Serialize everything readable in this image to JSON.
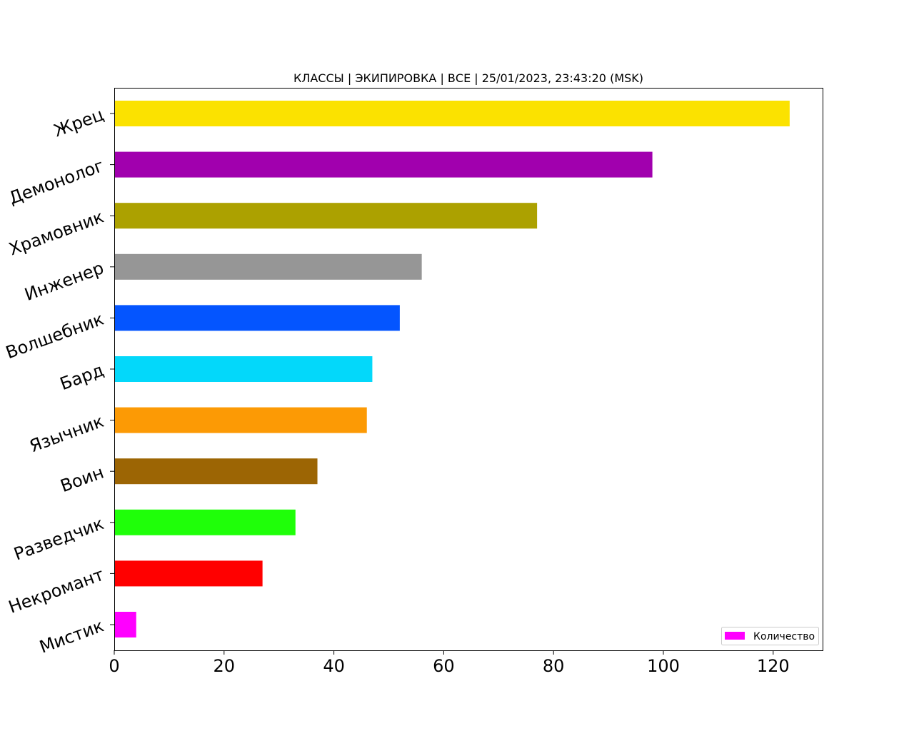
{
  "chart_data": {
    "type": "bar",
    "orientation": "horizontal",
    "title": "КЛАССЫ | ЭКИПИРОВКА | ВСЕ | 25/01/2023, 23:43:20 (MSK)",
    "xlabel": "",
    "ylabel": "",
    "xlim": [
      0,
      129
    ],
    "x_ticks": [
      "0",
      "20",
      "40",
      "60",
      "80",
      "100",
      "120"
    ],
    "grid": false,
    "legend_position": "bottom-right",
    "categories": [
      "Жрец",
      "Демонолог",
      "Храмовник",
      "Инженер",
      "Волшебник",
      "Бард",
      "Язычник",
      "Воин",
      "Разведчик",
      "Некромант",
      "Мистик"
    ],
    "series": [
      {
        "name": "Количество",
        "values": [
          123,
          98,
          77,
          56,
          52,
          47,
          46,
          37,
          33,
          27,
          4
        ],
        "colors": [
          "#fbe200",
          "#a100ae",
          "#aca100",
          "#969696",
          "#0455ff",
          "#03d8fa",
          "#fc9a05",
          "#9c6504",
          "#1fff09",
          "#ff0000",
          "#ff00ff"
        ]
      }
    ]
  }
}
